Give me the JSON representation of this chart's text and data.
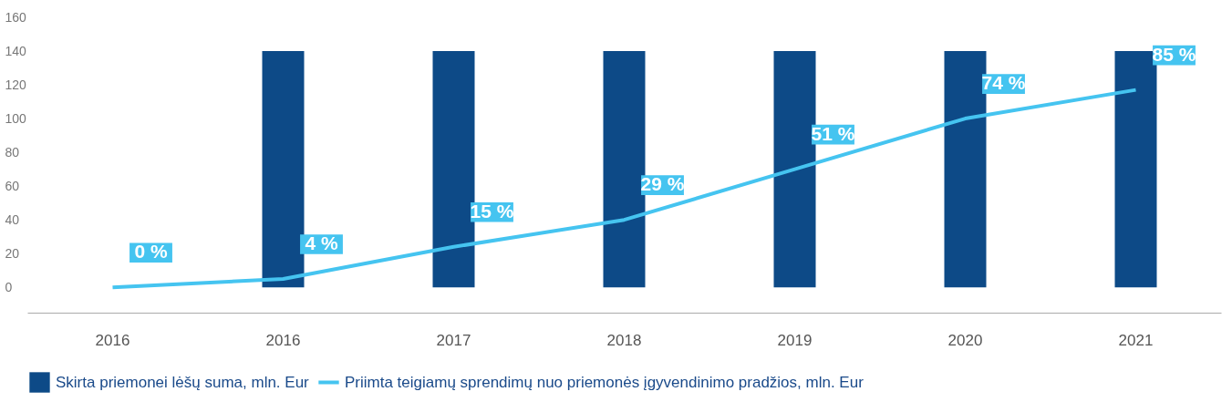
{
  "chart_data": {
    "type": "bar",
    "categories": [
      "2016",
      "2016",
      "2017",
      "2018",
      "2019",
      "2020",
      "2021"
    ],
    "series": [
      {
        "name": "Skirta priemonei lėšų suma, mln. Eur",
        "type": "bar",
        "color": "#0d4a87",
        "values": [
          null,
          140,
          140,
          140,
          140,
          140,
          140
        ]
      },
      {
        "name": "Priimta teigiamų sprendimų nuo priemonės įgyvendinimo pradžios, mln. Eur",
        "type": "line",
        "color": "#45c4f0",
        "values": [
          0,
          5,
          24,
          40,
          70,
          100,
          117
        ]
      }
    ],
    "annotations": [
      {
        "text": "0 %",
        "x": "2016",
        "y": 0
      },
      "4 %",
      {
        "text": "15 %",
        "x": "2017",
        "y": 24
      },
      {
        "text": "29 %",
        "x": "2018",
        "y": 40
      },
      {
        "text": "51 %",
        "x": "2019",
        "y": 70
      },
      {
        "text": "74 %",
        "x": "2020",
        "y": 100
      },
      {
        "text": "85 %",
        "x": "2021",
        "y": 117
      }
    ],
    "ylim": [
      -15,
      160
    ],
    "yticks": [
      0,
      20,
      40,
      60,
      80,
      100,
      120,
      140,
      160
    ],
    "grid": false,
    "legend": "bottom"
  }
}
